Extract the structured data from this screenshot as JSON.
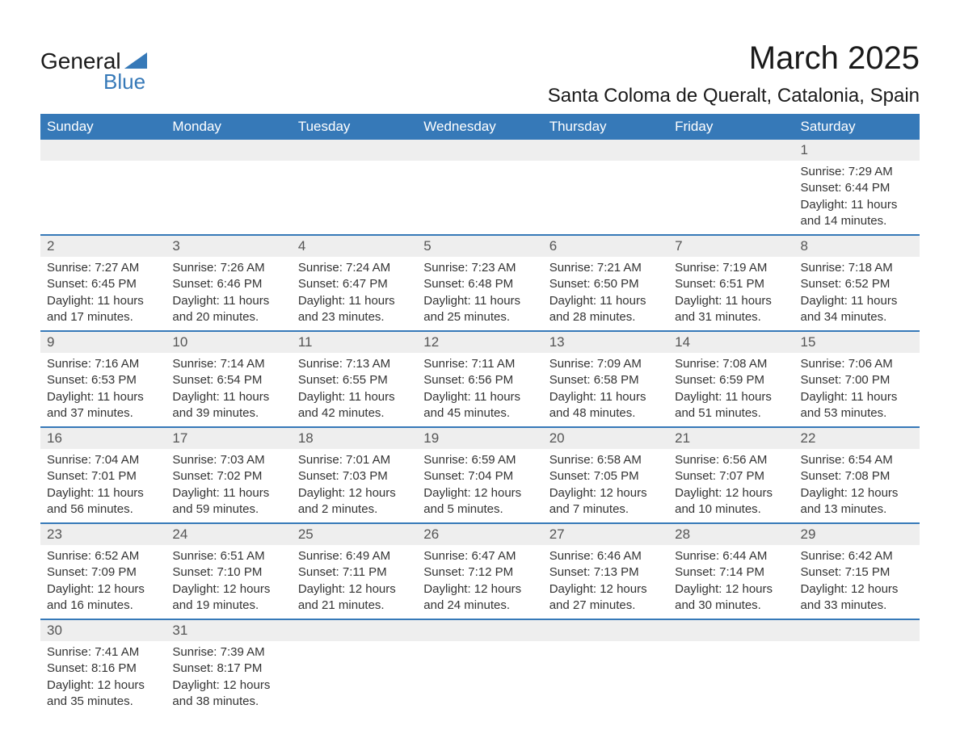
{
  "logo": {
    "text_general": "General",
    "text_blue": "Blue",
    "triangle_color": "#3679b8"
  },
  "header": {
    "month_title": "March 2025",
    "location": "Santa Coloma de Queralt, Catalonia, Spain"
  },
  "colors": {
    "header_bg": "#3679b8",
    "header_text": "#ffffff",
    "daynum_bg": "#eeeeee",
    "border": "#3679b8",
    "body_text": "#333333"
  },
  "day_headers": [
    "Sunday",
    "Monday",
    "Tuesday",
    "Wednesday",
    "Thursday",
    "Friday",
    "Saturday"
  ],
  "weeks": [
    [
      {
        "day": "",
        "sunrise": "",
        "sunset": "",
        "daylight1": "",
        "daylight2": ""
      },
      {
        "day": "",
        "sunrise": "",
        "sunset": "",
        "daylight1": "",
        "daylight2": ""
      },
      {
        "day": "",
        "sunrise": "",
        "sunset": "",
        "daylight1": "",
        "daylight2": ""
      },
      {
        "day": "",
        "sunrise": "",
        "sunset": "",
        "daylight1": "",
        "daylight2": ""
      },
      {
        "day": "",
        "sunrise": "",
        "sunset": "",
        "daylight1": "",
        "daylight2": ""
      },
      {
        "day": "",
        "sunrise": "",
        "sunset": "",
        "daylight1": "",
        "daylight2": ""
      },
      {
        "day": "1",
        "sunrise": "Sunrise: 7:29 AM",
        "sunset": "Sunset: 6:44 PM",
        "daylight1": "Daylight: 11 hours",
        "daylight2": "and 14 minutes."
      }
    ],
    [
      {
        "day": "2",
        "sunrise": "Sunrise: 7:27 AM",
        "sunset": "Sunset: 6:45 PM",
        "daylight1": "Daylight: 11 hours",
        "daylight2": "and 17 minutes."
      },
      {
        "day": "3",
        "sunrise": "Sunrise: 7:26 AM",
        "sunset": "Sunset: 6:46 PM",
        "daylight1": "Daylight: 11 hours",
        "daylight2": "and 20 minutes."
      },
      {
        "day": "4",
        "sunrise": "Sunrise: 7:24 AM",
        "sunset": "Sunset: 6:47 PM",
        "daylight1": "Daylight: 11 hours",
        "daylight2": "and 23 minutes."
      },
      {
        "day": "5",
        "sunrise": "Sunrise: 7:23 AM",
        "sunset": "Sunset: 6:48 PM",
        "daylight1": "Daylight: 11 hours",
        "daylight2": "and 25 minutes."
      },
      {
        "day": "6",
        "sunrise": "Sunrise: 7:21 AM",
        "sunset": "Sunset: 6:50 PM",
        "daylight1": "Daylight: 11 hours",
        "daylight2": "and 28 minutes."
      },
      {
        "day": "7",
        "sunrise": "Sunrise: 7:19 AM",
        "sunset": "Sunset: 6:51 PM",
        "daylight1": "Daylight: 11 hours",
        "daylight2": "and 31 minutes."
      },
      {
        "day": "8",
        "sunrise": "Sunrise: 7:18 AM",
        "sunset": "Sunset: 6:52 PM",
        "daylight1": "Daylight: 11 hours",
        "daylight2": "and 34 minutes."
      }
    ],
    [
      {
        "day": "9",
        "sunrise": "Sunrise: 7:16 AM",
        "sunset": "Sunset: 6:53 PM",
        "daylight1": "Daylight: 11 hours",
        "daylight2": "and 37 minutes."
      },
      {
        "day": "10",
        "sunrise": "Sunrise: 7:14 AM",
        "sunset": "Sunset: 6:54 PM",
        "daylight1": "Daylight: 11 hours",
        "daylight2": "and 39 minutes."
      },
      {
        "day": "11",
        "sunrise": "Sunrise: 7:13 AM",
        "sunset": "Sunset: 6:55 PM",
        "daylight1": "Daylight: 11 hours",
        "daylight2": "and 42 minutes."
      },
      {
        "day": "12",
        "sunrise": "Sunrise: 7:11 AM",
        "sunset": "Sunset: 6:56 PM",
        "daylight1": "Daylight: 11 hours",
        "daylight2": "and 45 minutes."
      },
      {
        "day": "13",
        "sunrise": "Sunrise: 7:09 AM",
        "sunset": "Sunset: 6:58 PM",
        "daylight1": "Daylight: 11 hours",
        "daylight2": "and 48 minutes."
      },
      {
        "day": "14",
        "sunrise": "Sunrise: 7:08 AM",
        "sunset": "Sunset: 6:59 PM",
        "daylight1": "Daylight: 11 hours",
        "daylight2": "and 51 minutes."
      },
      {
        "day": "15",
        "sunrise": "Sunrise: 7:06 AM",
        "sunset": "Sunset: 7:00 PM",
        "daylight1": "Daylight: 11 hours",
        "daylight2": "and 53 minutes."
      }
    ],
    [
      {
        "day": "16",
        "sunrise": "Sunrise: 7:04 AM",
        "sunset": "Sunset: 7:01 PM",
        "daylight1": "Daylight: 11 hours",
        "daylight2": "and 56 minutes."
      },
      {
        "day": "17",
        "sunrise": "Sunrise: 7:03 AM",
        "sunset": "Sunset: 7:02 PM",
        "daylight1": "Daylight: 11 hours",
        "daylight2": "and 59 minutes."
      },
      {
        "day": "18",
        "sunrise": "Sunrise: 7:01 AM",
        "sunset": "Sunset: 7:03 PM",
        "daylight1": "Daylight: 12 hours",
        "daylight2": "and 2 minutes."
      },
      {
        "day": "19",
        "sunrise": "Sunrise: 6:59 AM",
        "sunset": "Sunset: 7:04 PM",
        "daylight1": "Daylight: 12 hours",
        "daylight2": "and 5 minutes."
      },
      {
        "day": "20",
        "sunrise": "Sunrise: 6:58 AM",
        "sunset": "Sunset: 7:05 PM",
        "daylight1": "Daylight: 12 hours",
        "daylight2": "and 7 minutes."
      },
      {
        "day": "21",
        "sunrise": "Sunrise: 6:56 AM",
        "sunset": "Sunset: 7:07 PM",
        "daylight1": "Daylight: 12 hours",
        "daylight2": "and 10 minutes."
      },
      {
        "day": "22",
        "sunrise": "Sunrise: 6:54 AM",
        "sunset": "Sunset: 7:08 PM",
        "daylight1": "Daylight: 12 hours",
        "daylight2": "and 13 minutes."
      }
    ],
    [
      {
        "day": "23",
        "sunrise": "Sunrise: 6:52 AM",
        "sunset": "Sunset: 7:09 PM",
        "daylight1": "Daylight: 12 hours",
        "daylight2": "and 16 minutes."
      },
      {
        "day": "24",
        "sunrise": "Sunrise: 6:51 AM",
        "sunset": "Sunset: 7:10 PM",
        "daylight1": "Daylight: 12 hours",
        "daylight2": "and 19 minutes."
      },
      {
        "day": "25",
        "sunrise": "Sunrise: 6:49 AM",
        "sunset": "Sunset: 7:11 PM",
        "daylight1": "Daylight: 12 hours",
        "daylight2": "and 21 minutes."
      },
      {
        "day": "26",
        "sunrise": "Sunrise: 6:47 AM",
        "sunset": "Sunset: 7:12 PM",
        "daylight1": "Daylight: 12 hours",
        "daylight2": "and 24 minutes."
      },
      {
        "day": "27",
        "sunrise": "Sunrise: 6:46 AM",
        "sunset": "Sunset: 7:13 PM",
        "daylight1": "Daylight: 12 hours",
        "daylight2": "and 27 minutes."
      },
      {
        "day": "28",
        "sunrise": "Sunrise: 6:44 AM",
        "sunset": "Sunset: 7:14 PM",
        "daylight1": "Daylight: 12 hours",
        "daylight2": "and 30 minutes."
      },
      {
        "day": "29",
        "sunrise": "Sunrise: 6:42 AM",
        "sunset": "Sunset: 7:15 PM",
        "daylight1": "Daylight: 12 hours",
        "daylight2": "and 33 minutes."
      }
    ],
    [
      {
        "day": "30",
        "sunrise": "Sunrise: 7:41 AM",
        "sunset": "Sunset: 8:16 PM",
        "daylight1": "Daylight: 12 hours",
        "daylight2": "and 35 minutes."
      },
      {
        "day": "31",
        "sunrise": "Sunrise: 7:39 AM",
        "sunset": "Sunset: 8:17 PM",
        "daylight1": "Daylight: 12 hours",
        "daylight2": "and 38 minutes."
      },
      {
        "day": "",
        "sunrise": "",
        "sunset": "",
        "daylight1": "",
        "daylight2": ""
      },
      {
        "day": "",
        "sunrise": "",
        "sunset": "",
        "daylight1": "",
        "daylight2": ""
      },
      {
        "day": "",
        "sunrise": "",
        "sunset": "",
        "daylight1": "",
        "daylight2": ""
      },
      {
        "day": "",
        "sunrise": "",
        "sunset": "",
        "daylight1": "",
        "daylight2": ""
      },
      {
        "day": "",
        "sunrise": "",
        "sunset": "",
        "daylight1": "",
        "daylight2": ""
      }
    ]
  ]
}
